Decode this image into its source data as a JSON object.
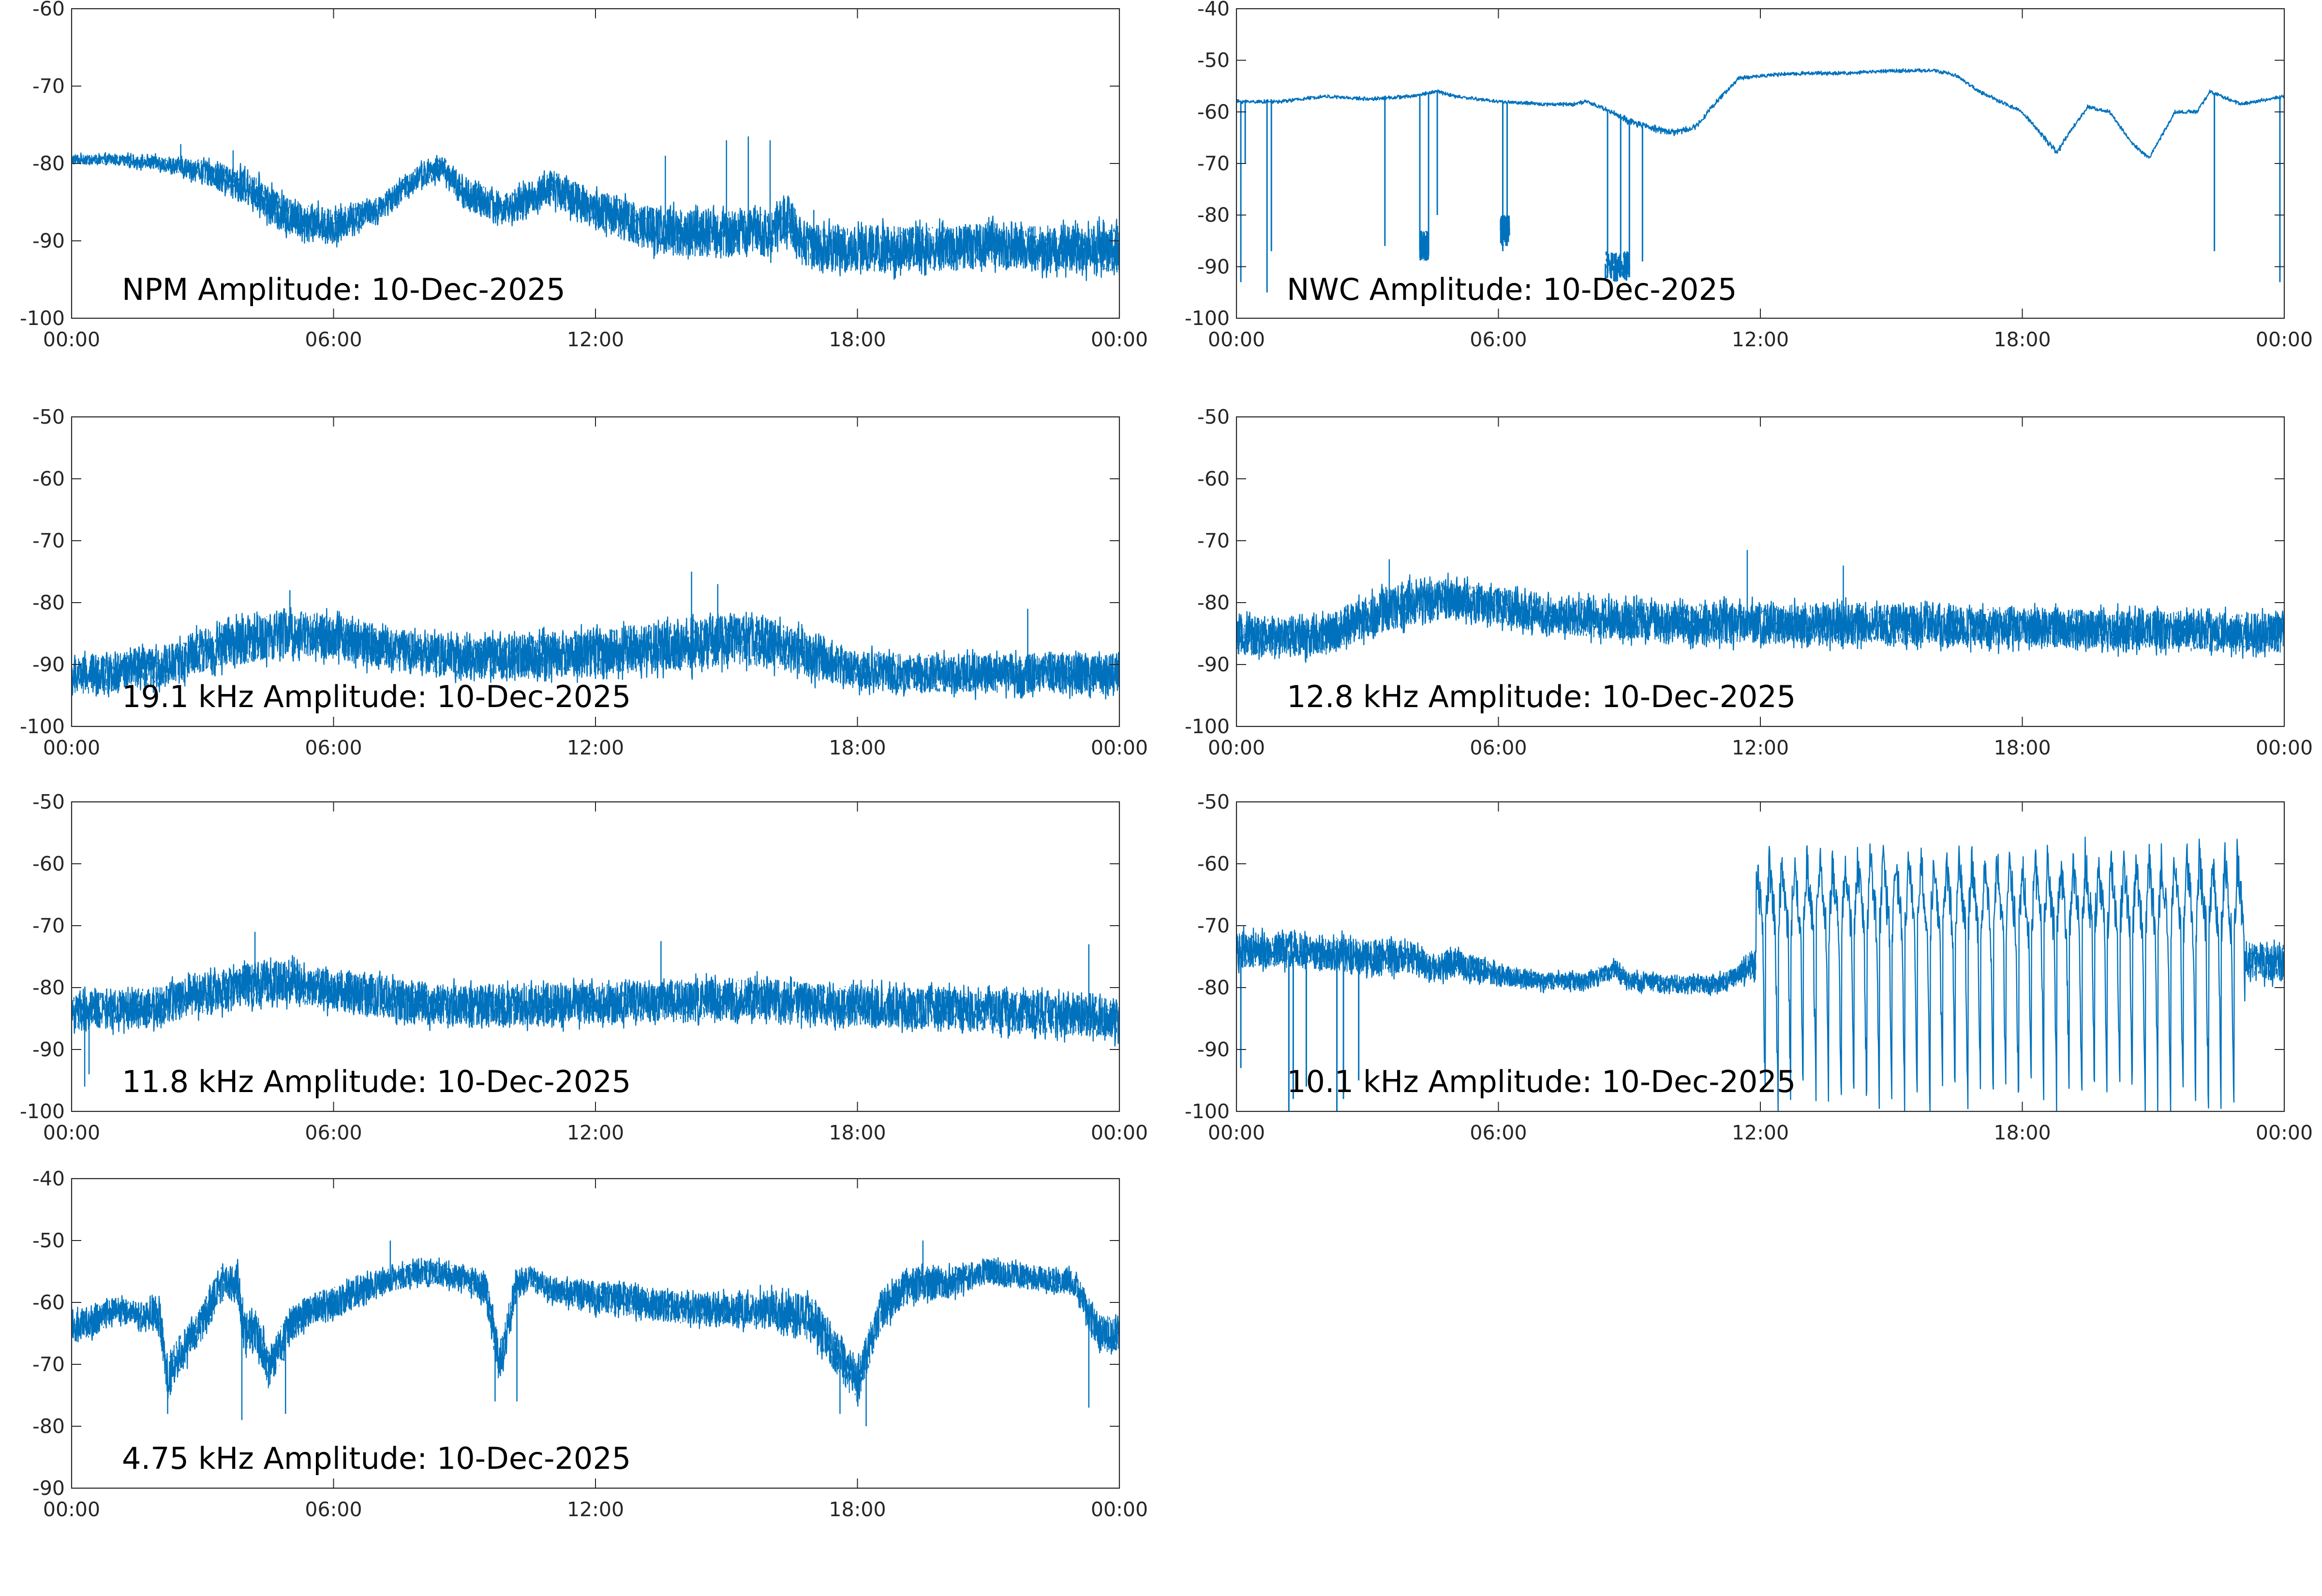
{
  "page": {
    "background": "#ffffff",
    "line_color": "#0072bd",
    "axis_color": "#262626"
  },
  "chart_data": [
    {
      "type": "line",
      "title": "NPM Amplitude: 10-Dec-2025",
      "xlabel": "",
      "ylabel": "",
      "xlim": [
        0,
        24
      ],
      "x_ticks": [
        0,
        6,
        12,
        18,
        24
      ],
      "x_tick_labels": [
        "00:00",
        "06:00",
        "12:00",
        "18:00",
        "00:00"
      ],
      "ylim": [
        -100,
        -60
      ],
      "y_ticks": [
        -100,
        -90,
        -80,
        -70,
        -60
      ],
      "y_tick_labels": [
        "-100",
        "-90",
        "-80",
        "-70",
        "-60"
      ],
      "grid": false,
      "series": [
        {
          "name": "NPM",
          "x": [
            0,
            1,
            2,
            3,
            4,
            5,
            6,
            7,
            8,
            8.5,
            9,
            10,
            11,
            12,
            13,
            14,
            15,
            16,
            16.4,
            16.7,
            17,
            18,
            19,
            20,
            21,
            22,
            23,
            24
          ],
          "y": [
            -79.5,
            -79.5,
            -80,
            -81,
            -83,
            -87,
            -88,
            -86,
            -81.5,
            -80.5,
            -84,
            -86,
            -83,
            -86,
            -88,
            -89,
            -89,
            -89,
            -87,
            -90,
            -91,
            -91,
            -91,
            -91,
            -90.5,
            -91,
            -91,
            -91
          ],
          "noise": [
            0.6,
            0.7,
            0.9,
            1.5,
            2.2,
            2.4,
            2.2,
            1.6,
            1.5,
            1.5,
            2.0,
            2.0,
            2.2,
            2.5,
            2.8,
            3.0,
            3.0,
            3.0,
            3.0,
            3.0,
            3.0,
            3.0,
            3.0,
            3.0,
            3.0,
            3.0,
            3.0,
            3.0
          ],
          "spikes": [
            [
              2.5,
              -77.5
            ],
            [
              3.7,
              -78.3
            ],
            [
              13.6,
              -79
            ],
            [
              15.0,
              -77
            ],
            [
              15.5,
              -76.5
            ],
            [
              16.0,
              -77
            ],
            [
              17.0,
              -86
            ]
          ]
        }
      ]
    },
    {
      "type": "line",
      "title": "NWC Amplitude: 10-Dec-2025",
      "xlabel": "",
      "ylabel": "",
      "xlim": [
        0,
        24
      ],
      "x_ticks": [
        0,
        6,
        12,
        18,
        24
      ],
      "x_tick_labels": [
        "00:00",
        "06:00",
        "12:00",
        "18:00",
        "00:00"
      ],
      "ylim": [
        -100,
        -40
      ],
      "y_ticks": [
        -100,
        -90,
        -80,
        -70,
        -60,
        -50,
        -40
      ],
      "y_tick_labels": [
        "-100",
        "-90",
        "-80",
        "-70",
        "-60",
        "-50",
        "-40"
      ],
      "grid": false,
      "series": [
        {
          "name": "NWC",
          "x": [
            0,
            1,
            2,
            3,
            4,
            4.3,
            4.6,
            5,
            6,
            7,
            7.7,
            8,
            8.6,
            9,
            9.5,
            10,
            10.5,
            11,
            11.5,
            12,
            13,
            14,
            15,
            16,
            16.5,
            17,
            18,
            18.5,
            18.8,
            19,
            19.5,
            20,
            20.5,
            20.9,
            21.5,
            22,
            22.3,
            23,
            24
          ],
          "y": [
            -58,
            -58,
            -57,
            -57.5,
            -57,
            -56.5,
            -56,
            -57,
            -58,
            -58.5,
            -58.5,
            -58,
            -60,
            -62,
            -63,
            -64,
            -63,
            -58,
            -53.5,
            -53,
            -52.5,
            -52.5,
            -52,
            -52,
            -53,
            -56,
            -60,
            -65,
            -68,
            -65,
            -59,
            -60,
            -66,
            -69,
            -60,
            -60,
            -56,
            -58.5,
            -57
          ],
          "noise": [
            0.3,
            0.3,
            0.3,
            0.3,
            0.3,
            0.3,
            0.3,
            0.3,
            0.3,
            0.3,
            0.3,
            0.3,
            0.4,
            0.6,
            0.6,
            0.6,
            0.5,
            0.4,
            0.3,
            0.3,
            0.3,
            0.3,
            0.3,
            0.3,
            0.3,
            0.3,
            0.3,
            0.4,
            0.5,
            0.4,
            0.3,
            0.3,
            0.3,
            0.3,
            0.3,
            0.3,
            0.3,
            0.3,
            0.3
          ],
          "dropouts": [
            [
              0.1,
              -93
            ],
            [
              0.2,
              -70
            ],
            [
              0.7,
              -95
            ],
            [
              0.8,
              -87
            ],
            [
              3.4,
              -86
            ],
            [
              4.2,
              -87
            ],
            [
              4.4,
              -87
            ],
            [
              4.6,
              -80
            ],
            [
              6.1,
              -87
            ],
            [
              6.2,
              -86
            ],
            [
              7.7,
              -59
            ],
            [
              8.5,
              -92
            ],
            [
              8.8,
              -92
            ],
            [
              9.0,
              -92
            ],
            [
              9.3,
              -89
            ],
            [
              22.4,
              -87
            ],
            [
              23.9,
              -93
            ]
          ],
          "blocks": [
            [
              4.2,
              4.4,
              -86
            ],
            [
              6.05,
              6.25,
              -83
            ],
            [
              8.45,
              9.0,
              -90
            ]
          ]
        }
      ]
    },
    {
      "type": "line",
      "title": "19.1 kHz Amplitude: 10-Dec-2025",
      "xlabel": "",
      "ylabel": "",
      "xlim": [
        0,
        24
      ],
      "x_ticks": [
        0,
        6,
        12,
        18,
        24
      ],
      "x_tick_labels": [
        "00:00",
        "06:00",
        "12:00",
        "18:00",
        "00:00"
      ],
      "ylim": [
        -100,
        -50
      ],
      "y_ticks": [
        -100,
        -90,
        -80,
        -70,
        -60,
        -50
      ],
      "y_tick_labels": [
        "-100",
        "-90",
        "-80",
        "-70",
        "-60",
        "-50"
      ],
      "grid": false,
      "series": [
        {
          "name": "19.1 kHz",
          "x": [
            0,
            2,
            3,
            4,
            5,
            6,
            7,
            8,
            9,
            10,
            12,
            14,
            15,
            16,
            17,
            18,
            20,
            22,
            24
          ],
          "y": [
            -92,
            -90.5,
            -88,
            -86,
            -85,
            -85.5,
            -87,
            -88,
            -89,
            -89,
            -88,
            -87,
            -86,
            -86.5,
            -89,
            -91,
            -91.5,
            -91.5,
            -91.5
          ],
          "noise": [
            3.0,
            3.2,
            3.5,
            3.8,
            3.8,
            3.6,
            3.4,
            3.2,
            3.2,
            3.5,
            3.8,
            4.0,
            4.2,
            4.0,
            3.5,
            3.0,
            3.0,
            3.2,
            3.2
          ],
          "spikes": [
            [
              14.2,
              -75
            ],
            [
              14.8,
              -77
            ],
            [
              5.0,
              -78
            ],
            [
              21.9,
              -81
            ]
          ]
        }
      ]
    },
    {
      "type": "line",
      "title": "12.8 kHz Amplitude: 10-Dec-2025",
      "xlabel": "",
      "ylabel": "",
      "xlim": [
        0,
        24
      ],
      "x_ticks": [
        0,
        6,
        12,
        18,
        24
      ],
      "x_tick_labels": [
        "00:00",
        "06:00",
        "12:00",
        "18:00",
        "00:00"
      ],
      "ylim": [
        -100,
        -50
      ],
      "y_ticks": [
        -100,
        -90,
        -80,
        -70,
        -60,
        -50
      ],
      "y_tick_labels": [
        "-100",
        "-90",
        "-80",
        "-70",
        "-60",
        "-50"
      ],
      "grid": false,
      "series": [
        {
          "name": "12.8 kHz",
          "x": [
            0,
            2,
            3,
            4,
            5,
            6,
            7,
            9,
            12,
            15,
            18,
            21,
            24
          ],
          "y": [
            -85.5,
            -85.5,
            -82,
            -80,
            -79.5,
            -80.5,
            -82,
            -83,
            -83.5,
            -83.5,
            -84,
            -84.5,
            -85
          ],
          "noise": [
            3.0,
            3.2,
            3.5,
            3.5,
            3.2,
            3.0,
            3.0,
            3.2,
            3.2,
            3.2,
            3.2,
            3.2,
            3.2
          ],
          "spikes": [
            [
              11.7,
              -71.5
            ],
            [
              3.5,
              -73
            ],
            [
              13.9,
              -74
            ]
          ]
        }
      ]
    },
    {
      "type": "line",
      "title": "11.8 kHz Amplitude: 10-Dec-2025",
      "xlabel": "",
      "ylabel": "",
      "xlim": [
        0,
        24
      ],
      "x_ticks": [
        0,
        6,
        12,
        18,
        24
      ],
      "x_tick_labels": [
        "00:00",
        "06:00",
        "12:00",
        "18:00",
        "00:00"
      ],
      "ylim": [
        -100,
        -50
      ],
      "y_ticks": [
        -100,
        -90,
        -80,
        -70,
        -60,
        -50
      ],
      "y_tick_labels": [
        "-100",
        "-90",
        "-80",
        "-70",
        "-60",
        "-50"
      ],
      "grid": false,
      "series": [
        {
          "name": "11.8 kHz",
          "x": [
            0,
            2,
            3,
            4,
            5,
            6,
            8,
            10,
            12,
            14,
            16,
            18,
            20,
            22,
            24
          ],
          "y": [
            -84,
            -83,
            -81,
            -79.5,
            -79,
            -80.5,
            -82.5,
            -83,
            -82.5,
            -82,
            -82,
            -83,
            -83.5,
            -84,
            -85
          ],
          "noise": [
            3.0,
            3.2,
            3.3,
            3.3,
            3.3,
            3.3,
            3.3,
            3.3,
            3.3,
            3.3,
            3.3,
            3.3,
            3.3,
            3.3,
            3.3
          ],
          "spikes": [
            [
              0.3,
              -96
            ],
            [
              0.4,
              -94
            ],
            [
              13.5,
              -72.5
            ],
            [
              4.2,
              -71
            ],
            [
              23.3,
              -73
            ]
          ]
        }
      ]
    },
    {
      "type": "line",
      "title": "10.1 kHz Amplitude: 10-Dec-2025",
      "xlabel": "",
      "ylabel": "",
      "xlim": [
        0,
        24
      ],
      "x_ticks": [
        0,
        6,
        12,
        18,
        24
      ],
      "x_tick_labels": [
        "00:00",
        "06:00",
        "12:00",
        "18:00",
        "00:00"
      ],
      "ylim": [
        -100,
        -50
      ],
      "y_ticks": [
        -100,
        -90,
        -80,
        -70,
        -60,
        -50
      ],
      "y_tick_labels": [
        "-100",
        "-90",
        "-80",
        "-70",
        "-60",
        "-50"
      ],
      "grid": false,
      "series": [
        {
          "name": "10.1 kHz",
          "x": [
            0,
            1,
            2,
            3,
            4,
            4.5,
            5,
            5.5,
            6,
            7,
            8,
            8.7,
            9,
            10,
            11,
            11.5,
            12,
            14,
            16,
            18,
            20,
            22,
            24
          ],
          "y": [
            -74,
            -74,
            -74.5,
            -75,
            -75,
            -77,
            -76,
            -77,
            -78,
            -79,
            -79,
            -77,
            -79,
            -79.5,
            -79.5,
            -78,
            -75,
            -74,
            -74,
            -74,
            -74,
            -75,
            -76
          ],
          "noise": [
            2.8,
            2.8,
            2.8,
            2.8,
            2.6,
            2.2,
            2.2,
            2.0,
            1.6,
            1.4,
            1.4,
            1.5,
            1.4,
            1.4,
            1.4,
            1.6,
            3.0,
            3.0,
            3.0,
            3.0,
            3.0,
            3.0,
            3.0
          ],
          "dropouts": [
            [
              1.2,
              -100
            ],
            [
              1.3,
              -98
            ],
            [
              1.6,
              -96
            ],
            [
              2.3,
              -100
            ],
            [
              2.45,
              -98
            ],
            [
              2.8,
              -95
            ],
            [
              0.1,
              -93
            ]
          ],
          "oscillation": {
            "start": 11.9,
            "end": 23.1,
            "period": 0.29,
            "peak": -62,
            "trough": -100,
            "after_level": -76
          }
        }
      ]
    },
    {
      "type": "line",
      "title": "4.75 kHz Amplitude: 10-Dec-2025",
      "xlabel": "",
      "ylabel": "",
      "xlim": [
        0,
        24
      ],
      "x_ticks": [
        0,
        6,
        12,
        18,
        24
      ],
      "x_tick_labels": [
        "00:00",
        "06:00",
        "12:00",
        "18:00",
        "00:00"
      ],
      "ylim": [
        -90,
        -40
      ],
      "y_ticks": [
        -90,
        -80,
        -70,
        -60,
        -50,
        -40
      ],
      "y_tick_labels": [
        "-90",
        "-80",
        "-70",
        "-60",
        "-50",
        "-40"
      ],
      "grid": false,
      "series": [
        {
          "name": "4.75 kHz",
          "x": [
            0,
            0.5,
            1,
            1.5,
            2,
            2.2,
            2.5,
            3,
            3.4,
            3.8,
            4,
            4.2,
            4.5,
            5,
            5.5,
            6,
            7,
            8,
            9,
            9.5,
            9.8,
            10.2,
            10.5,
            11,
            12,
            13,
            14,
            15,
            16,
            17,
            17.5,
            18,
            18.5,
            19,
            19.5,
            20,
            21,
            22,
            23,
            23.5,
            24
          ],
          "y": [
            -64,
            -63,
            -61,
            -62,
            -62,
            -72,
            -68,
            -63,
            -57,
            -57,
            -66,
            -64,
            -71,
            -64,
            -61,
            -60,
            -57,
            -55,
            -56,
            -58,
            -70,
            -57,
            -56,
            -58,
            -59,
            -60,
            -61,
            -61,
            -61,
            -63,
            -68,
            -73,
            -62,
            -58,
            -57,
            -57,
            -55,
            -56,
            -57,
            -65,
            -65
          ],
          "noise": [
            2.5,
            2.5,
            2.0,
            2.0,
            2.5,
            3.5,
            3.0,
            3.0,
            3.0,
            3.0,
            3.5,
            3.5,
            3.5,
            3.0,
            2.5,
            2.5,
            2.0,
            2.0,
            2.0,
            2.5,
            3.5,
            2.5,
            2.0,
            2.0,
            2.5,
            2.5,
            2.5,
            2.5,
            3.0,
            3.5,
            3.5,
            3.5,
            3.0,
            3.0,
            3.0,
            2.5,
            2.0,
            2.0,
            2.0,
            3.0,
            3.0
          ],
          "spikes": [
            [
              2.2,
              -78
            ],
            [
              3.9,
              -79
            ],
            [
              4.9,
              -78
            ],
            [
              9.7,
              -76
            ],
            [
              10.2,
              -76
            ],
            [
              17.6,
              -78
            ],
            [
              18.2,
              -80
            ],
            [
              19.5,
              -50
            ],
            [
              23.3,
              -77
            ],
            [
              7.3,
              -50
            ]
          ]
        }
      ]
    }
  ]
}
